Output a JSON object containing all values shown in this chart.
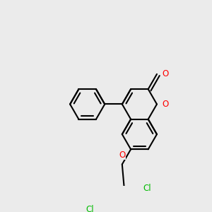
{
  "background_color": "#EBEBEB",
  "bond_color": "#000000",
  "bond_width": 1.5,
  "atom_colors": {
    "O": "#FF0000",
    "Cl": "#00BB00",
    "C": "#000000"
  },
  "figsize": [
    3.0,
    3.0
  ],
  "dpi": 100
}
